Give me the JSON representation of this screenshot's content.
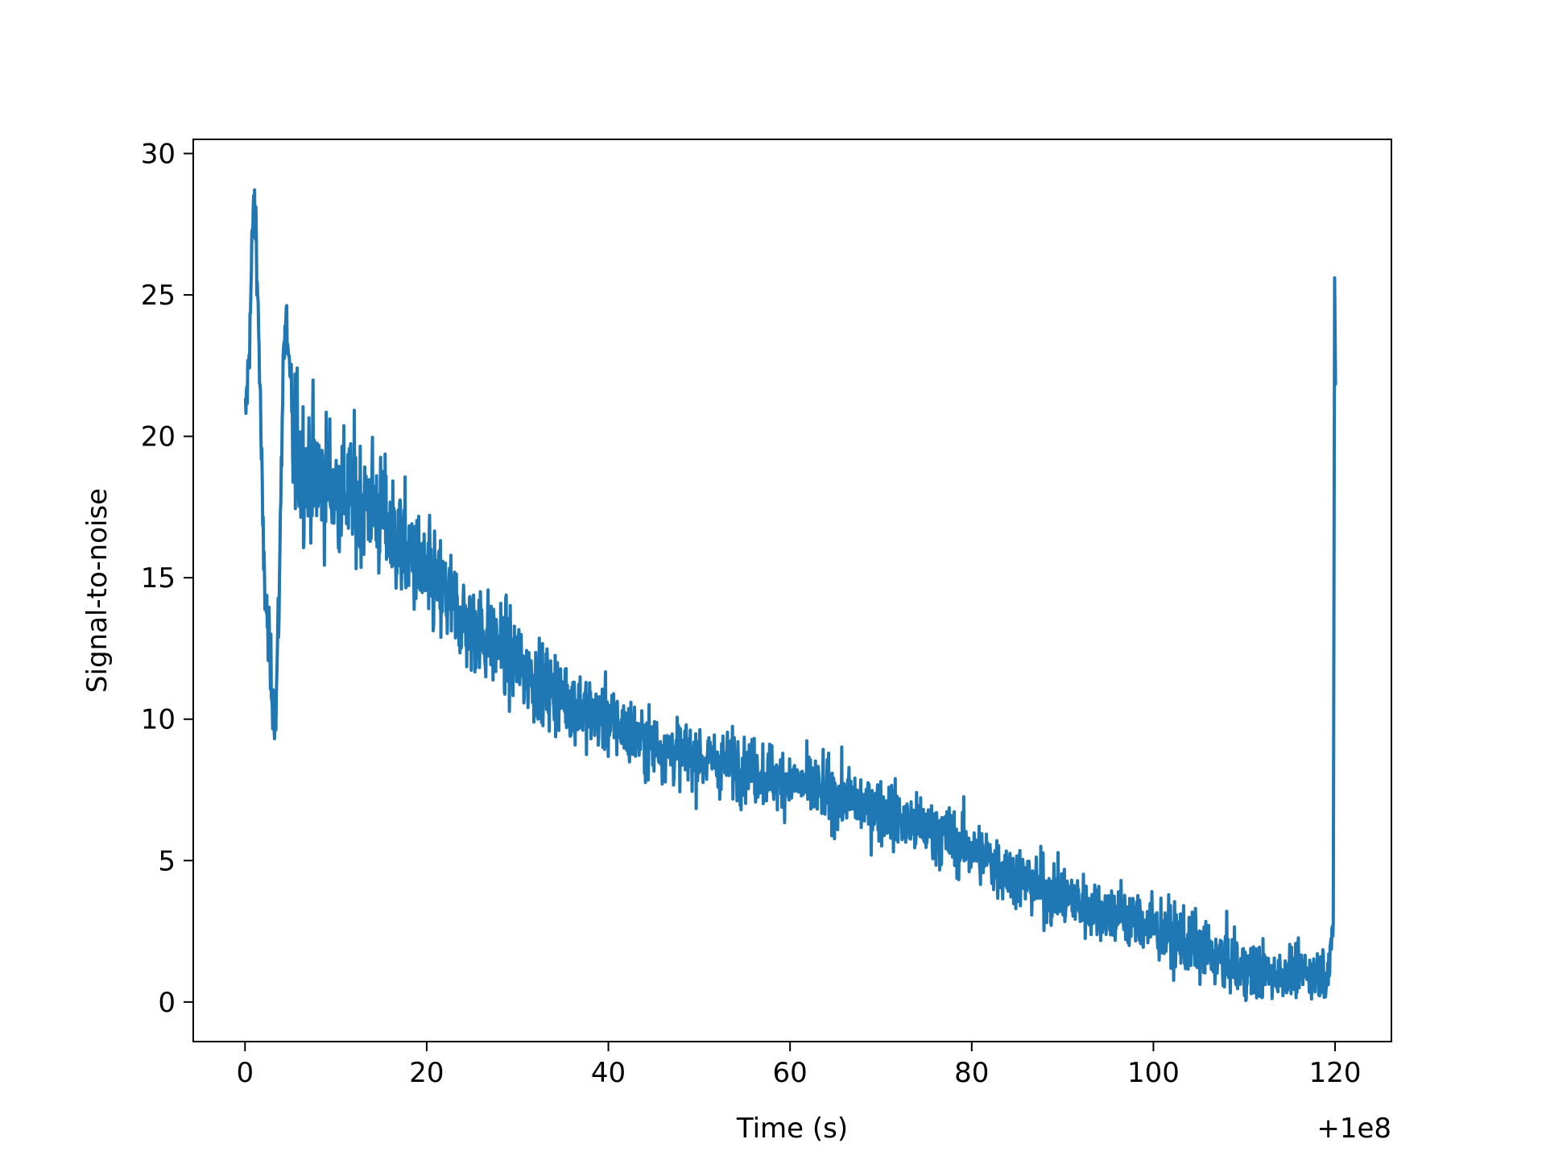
{
  "chart_data": {
    "type": "line",
    "title": "",
    "xlabel": "Time (s)",
    "ylabel": "Signal-to-noise",
    "x_offset_label": "+1e8",
    "xlim": [
      -5.7,
      126.2
    ],
    "ylim": [
      -1.4,
      30.5
    ],
    "xticks": [
      0,
      20,
      40,
      60,
      80,
      100,
      120
    ],
    "yticks": [
      0,
      5,
      10,
      15,
      20,
      25,
      30
    ],
    "grid": false,
    "legend": "none",
    "color": "#1f77b4",
    "series": [
      {
        "trend_points": [
          [
            0.0,
            20.5
          ],
          [
            0.3,
            22.0
          ],
          [
            0.6,
            24.5
          ],
          [
            0.9,
            28.0
          ],
          [
            1.2,
            27.5
          ],
          [
            1.6,
            22.5
          ],
          [
            2.0,
            16.0
          ],
          [
            2.5,
            13.0
          ],
          [
            3.0,
            11.0
          ],
          [
            3.4,
            10.2
          ],
          [
            3.8,
            15.0
          ],
          [
            4.2,
            23.0
          ],
          [
            4.6,
            24.0
          ],
          [
            5.2,
            20.0
          ],
          [
            6.0,
            19.0
          ],
          [
            8.0,
            18.6
          ],
          [
            10.0,
            18.2
          ],
          [
            12.0,
            17.8
          ],
          [
            14.0,
            17.6
          ],
          [
            16.0,
            16.6
          ],
          [
            18.0,
            15.8
          ],
          [
            20.0,
            15.0
          ],
          [
            22.0,
            14.4
          ],
          [
            24.0,
            13.6
          ],
          [
            26.0,
            13.0
          ],
          [
            28.0,
            12.6
          ],
          [
            30.0,
            12.0
          ],
          [
            32.0,
            11.4
          ],
          [
            34.0,
            11.0
          ],
          [
            36.0,
            10.6
          ],
          [
            38.0,
            10.2
          ],
          [
            40.0,
            10.0
          ],
          [
            42.0,
            9.6
          ],
          [
            44.0,
            9.2
          ],
          [
            46.0,
            9.0
          ],
          [
            48.0,
            8.8
          ],
          [
            50.0,
            8.6
          ],
          [
            52.0,
            8.5
          ],
          [
            54.0,
            8.4
          ],
          [
            56.0,
            8.2
          ],
          [
            58.0,
            8.0
          ],
          [
            60.0,
            7.8
          ],
          [
            62.0,
            7.6
          ],
          [
            64.0,
            7.4
          ],
          [
            66.0,
            7.2
          ],
          [
            68.0,
            7.0
          ],
          [
            70.0,
            6.8
          ],
          [
            72.0,
            6.5
          ],
          [
            74.0,
            6.2
          ],
          [
            76.0,
            6.0
          ],
          [
            78.0,
            5.7
          ],
          [
            80.0,
            5.4
          ],
          [
            82.0,
            5.0
          ],
          [
            84.0,
            4.6
          ],
          [
            86.0,
            4.3
          ],
          [
            88.0,
            4.0
          ],
          [
            90.0,
            3.7
          ],
          [
            92.0,
            3.5
          ],
          [
            94.0,
            3.3
          ],
          [
            96.0,
            3.1
          ],
          [
            98.0,
            2.9
          ],
          [
            100.0,
            2.6
          ],
          [
            102.0,
            2.3
          ],
          [
            104.0,
            2.0
          ],
          [
            106.0,
            1.7
          ],
          [
            108.0,
            1.4
          ],
          [
            110.0,
            1.1
          ],
          [
            112.0,
            1.0
          ],
          [
            114.0,
            1.0
          ],
          [
            116.0,
            1.0
          ],
          [
            118.0,
            1.0
          ],
          [
            119.5,
            1.2
          ],
          [
            119.8,
            3.0
          ],
          [
            119.95,
            25.6
          ],
          [
            120.05,
            21.8
          ]
        ]
      }
    ]
  }
}
